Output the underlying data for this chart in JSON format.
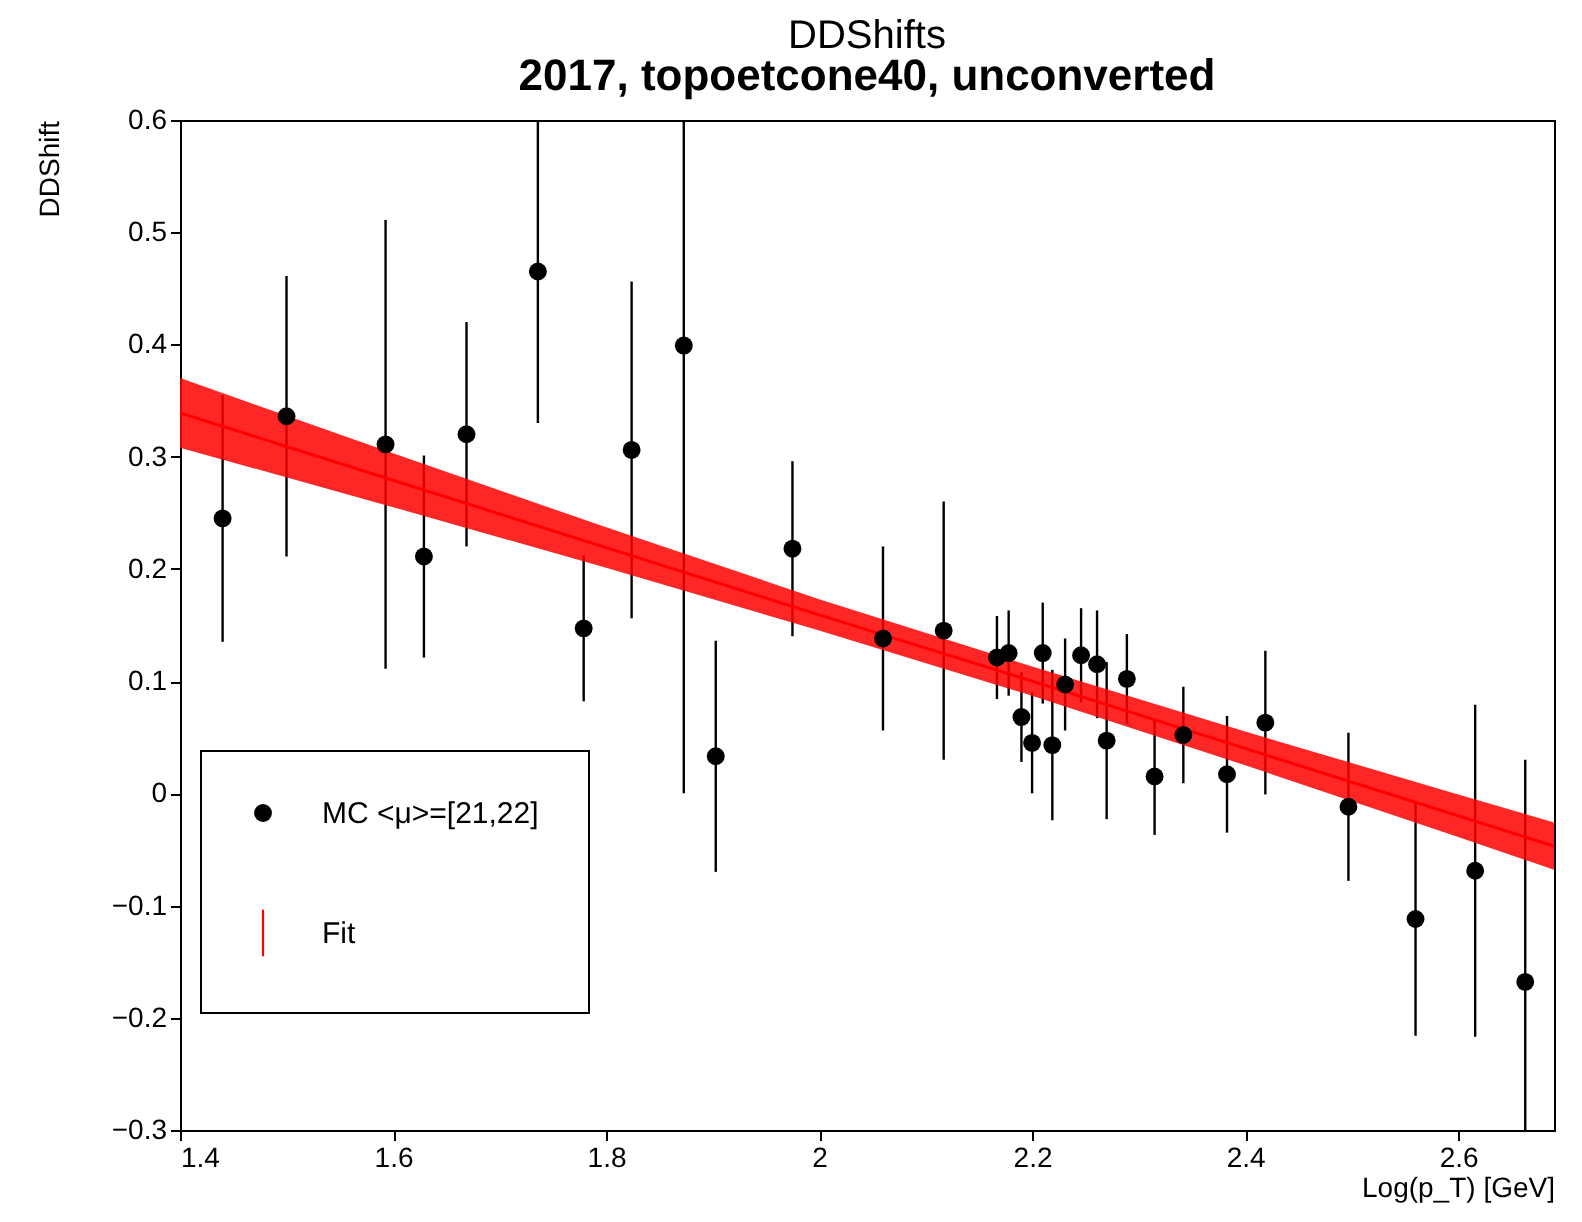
{
  "chart_data": {
    "type": "scatter",
    "title": "DDShifts",
    "subtitle": "2017, topoetcone40, unconverted",
    "xlabel": "Log(p_T) [GeV]",
    "ylabel": "DDShift",
    "xlim": [
      1.4,
      2.69
    ],
    "xticks": [
      1.4,
      1.6,
      1.8,
      2,
      2.2,
      2.4,
      2.6
    ],
    "ylim": [
      -0.3,
      0.6
    ],
    "yticks": [
      -0.3,
      -0.2,
      -0.1,
      0,
      0.1,
      0.2,
      0.3,
      0.4,
      0.5,
      0.6
    ],
    "grid": false,
    "legend": "bottom left",
    "marker": "circle",
    "series": [
      {
        "name": "MC <μ>=[21,22]",
        "color": "#000000",
        "x": [
          1.44,
          1.5,
          1.593,
          1.629,
          1.669,
          1.736,
          1.779,
          1.824,
          1.873,
          1.903,
          1.975,
          2.06,
          2.117,
          2.167,
          2.178,
          2.19,
          2.2,
          2.21,
          2.219,
          2.231,
          2.246,
          2.261,
          2.27,
          2.289,
          2.315,
          2.342,
          2.383,
          2.419,
          2.497,
          2.56,
          2.616,
          2.663
        ],
        "values": [
          0.245,
          0.336,
          0.311,
          0.211,
          0.32,
          0.465,
          0.147,
          0.306,
          0.399,
          0.033,
          0.218,
          0.138,
          0.145,
          0.121,
          0.125,
          0.068,
          0.045,
          0.125,
          0.043,
          0.097,
          0.123,
          0.115,
          0.047,
          0.102,
          0.015,
          0.052,
          0.017,
          0.063,
          -0.012,
          -0.112,
          -0.069,
          -0.168
        ],
        "errors": [
          0.11,
          0.125,
          0.2,
          0.09,
          0.1,
          0.135,
          0.065,
          0.15,
          [
            0.0,
            0.6
          ],
          0.103,
          0.078,
          0.082,
          0.115,
          0.037,
          0.038,
          0.04,
          0.045,
          0.045,
          0.067,
          0.041,
          0.042,
          0.048,
          0.07,
          0.04,
          0.052,
          0.043,
          0.052,
          0.064,
          0.066,
          0.104,
          0.148,
          [
            -0.3,
            0.03
          ]
        ]
      },
      {
        "name": "Fit",
        "type": "line",
        "marker": "none",
        "color": "#ff0000",
        "x": [
          1.4,
          1.6,
          1.8,
          2.0,
          2.2,
          2.4,
          2.6,
          2.69
        ],
        "values": [
          0.339,
          0.279,
          0.219,
          0.159,
          0.1,
          0.04,
          -0.02,
          -0.047
        ],
        "lower": [
          0.308,
          0.255,
          0.201,
          0.145,
          0.087,
          0.025,
          -0.039,
          -0.068
        ],
        "upper": [
          0.37,
          0.303,
          0.237,
          0.173,
          0.113,
          0.055,
          -0.001,
          -0.026
        ]
      }
    ]
  }
}
